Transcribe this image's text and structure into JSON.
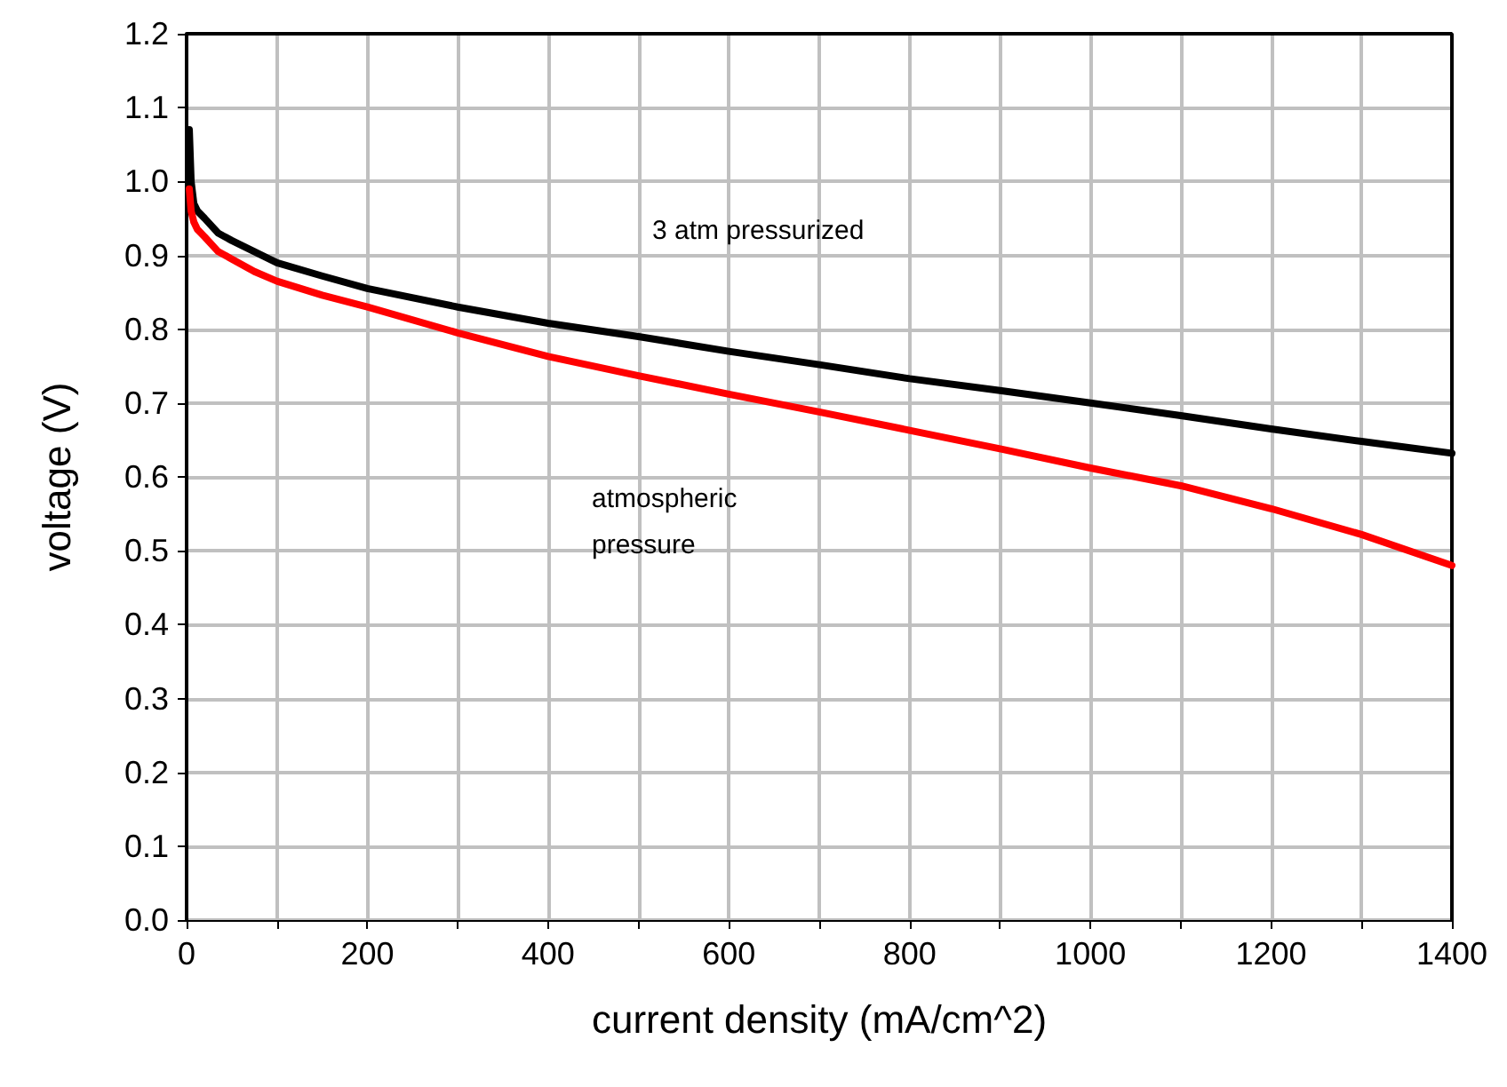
{
  "chart_data": {
    "type": "line",
    "xlabel": "current density (mA/cm^2)",
    "ylabel": "voltage (V)",
    "xlim": [
      0,
      1400
    ],
    "xticks": [
      0,
      {
        "value": 100,
        "label": null
      },
      200,
      {
        "value": 300,
        "label": null
      },
      400,
      {
        "value": 500,
        "label": null
      },
      600,
      {
        "value": 700,
        "label": null
      },
      800,
      {
        "value": 900,
        "label": null
      },
      1000,
      {
        "value": 1100,
        "label": null
      },
      1200,
      {
        "value": 1300,
        "label": null
      },
      1400
    ],
    "ylim": [
      0,
      1.2
    ],
    "yticks": [
      {
        "value": 0,
        "label": "0.0"
      },
      0.1,
      0.2,
      0.3,
      0.4,
      0.5,
      0.6,
      0.7,
      0.8,
      0.9,
      {
        "value": 1,
        "label": "1.0"
      },
      1.1,
      1.2
    ],
    "grid": true,
    "marker": "none",
    "line_style": "solid",
    "series": [
      {
        "color": "#000000",
        "x": [
          3,
          5,
          8,
          12,
          20,
          35,
          50,
          75,
          100,
          150,
          200,
          300,
          400,
          500,
          600,
          700,
          800,
          900,
          1000,
          1100,
          1200,
          1300,
          1400
        ],
        "values": [
          1.07,
          1.0,
          0.97,
          0.96,
          0.95,
          0.93,
          0.92,
          0.905,
          0.89,
          0.872,
          0.855,
          0.83,
          0.808,
          0.79,
          0.77,
          0.752,
          0.733,
          0.717,
          0.7,
          0.683,
          0.665,
          0.648,
          0.632
        ]
      },
      {
        "color": "#ff0000",
        "x": [
          3,
          5,
          8,
          12,
          20,
          35,
          50,
          75,
          100,
          150,
          200,
          300,
          400,
          500,
          600,
          700,
          800,
          900,
          1000,
          1100,
          1200,
          1300,
          1400
        ],
        "values": [
          0.99,
          0.96,
          0.945,
          0.935,
          0.925,
          0.905,
          0.895,
          0.878,
          0.865,
          0.846,
          0.83,
          0.795,
          0.763,
          0.737,
          0.712,
          0.688,
          0.663,
          0.638,
          0.612,
          0.588,
          0.557,
          0.522,
          0.48
        ]
      }
    ],
    "annotations": [
      "3 atm pressurized",
      "atmospheric\npressure"
    ]
  }
}
